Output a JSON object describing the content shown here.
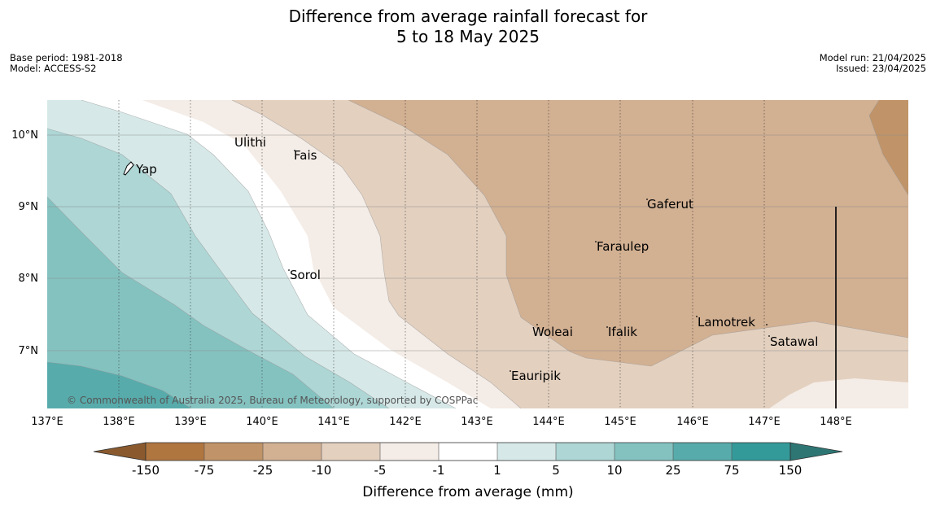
{
  "header": {
    "title_line1": "Difference from average rainfall forecast for",
    "title_line2": "5 to 18 May 2025",
    "base_period": "Base period: 1981-2018",
    "model": "Model: ACCESS-S2",
    "model_run": "Model run: 21/04/2025",
    "issued": "Issued: 23/04/2025"
  },
  "map": {
    "x_ticks": [
      "137°E",
      "138°E",
      "139°E",
      "140°E",
      "141°E",
      "142°E",
      "143°E",
      "144°E",
      "145°E",
      "146°E",
      "147°E",
      "148°E"
    ],
    "y_ticks": [
      "10°N",
      "9°N",
      "8°N",
      "7°N"
    ],
    "places": [
      {
        "name": "Yap"
      },
      {
        "name": "Ulithi"
      },
      {
        "name": "Fais"
      },
      {
        "name": "Gaferut"
      },
      {
        "name": "Faraulep"
      },
      {
        "name": "Sorol"
      },
      {
        "name": "Woleai"
      },
      {
        "name": "Ifalik"
      },
      {
        "name": "Lamotrek"
      },
      {
        "name": "Satawal"
      },
      {
        "name": "Eauripik"
      }
    ],
    "copyright": "© Commonwealth of Australia 2025, Bureau of Meteorology, supported by COSPPac"
  },
  "colorbar": {
    "title": "Difference from average (mm)",
    "tick_labels": [
      "-150",
      "-75",
      "-25",
      "-10",
      "-5",
      "-1",
      "1",
      "5",
      "10",
      "25",
      "75",
      "150"
    ],
    "colors": {
      "lt_-150": "#8a5a2e",
      "-150_-75": "#b07640",
      "-75_-25": "#c09468",
      "-25_-10": "#d2b092",
      "-10_-5": "#e3d0bf",
      "-5_-1": "#f4ece6",
      "-1_1": "#ffffff",
      "1_5": "#d6e9e8",
      "5_10": "#add6d5",
      "10_25": "#84c2c0",
      "25_75": "#58abab",
      "75_150": "#349a99",
      "gt_150": "#2d7674"
    }
  }
}
